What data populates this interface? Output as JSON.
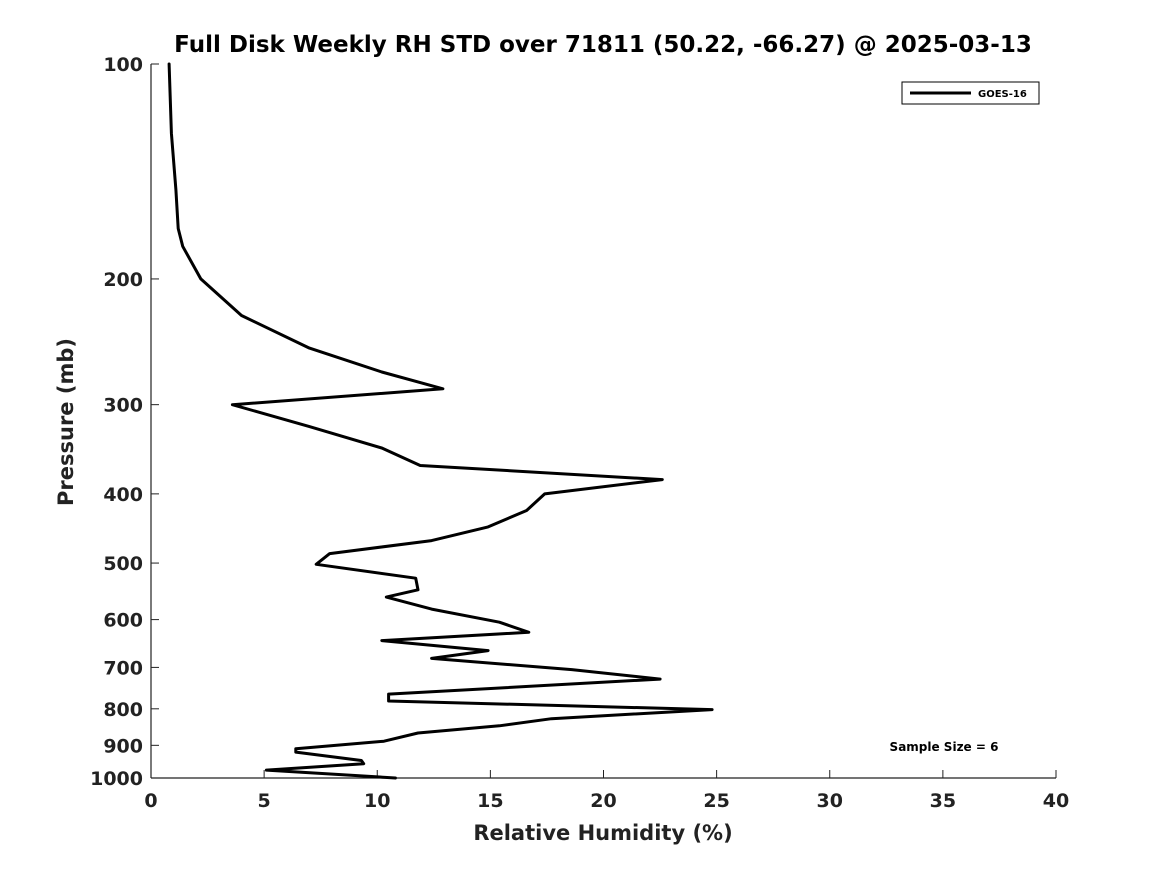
{
  "chart_data": {
    "type": "line",
    "title": "Full Disk Weekly RH STD over 71811 (50.22, -66.27) @ 2025-03-13",
    "xlabel": "Relative Humidity (%)",
    "ylabel": "Pressure (mb)",
    "xlim": [
      0,
      40
    ],
    "ylim": [
      100,
      1000
    ],
    "yscale": "log",
    "y_reversed": true,
    "x_ticks": [
      0,
      5,
      10,
      15,
      20,
      25,
      30,
      35,
      40
    ],
    "x_tick_labels": [
      "0",
      "5",
      "10",
      "15",
      "20",
      "25",
      "30",
      "35",
      "40"
    ],
    "y_ticks": [
      100,
      200,
      300,
      400,
      500,
      600,
      700,
      800,
      900,
      1000
    ],
    "y_tick_labels": [
      "100",
      "200",
      "300",
      "400",
      "500",
      "600",
      "700",
      "800",
      "900",
      "1000"
    ],
    "grid": false,
    "legend": {
      "position": "top-right",
      "entries": [
        "GOES-16"
      ]
    },
    "annotation": "Sample Size = 6",
    "series": [
      {
        "name": "GOES-16",
        "color": "#000000",
        "points": [
          [
            0.8,
            100
          ],
          [
            0.9,
            125
          ],
          [
            1.1,
            150
          ],
          [
            1.2,
            170
          ],
          [
            1.4,
            180
          ],
          [
            2.2,
            200
          ],
          [
            4.0,
            225
          ],
          [
            7.0,
            250
          ],
          [
            10.2,
            270
          ],
          [
            12.9,
            285
          ],
          [
            3.6,
            300
          ],
          [
            7.0,
            322
          ],
          [
            10.2,
            345
          ],
          [
            11.9,
            365
          ],
          [
            22.6,
            382
          ],
          [
            17.4,
            400
          ],
          [
            16.6,
            422
          ],
          [
            14.9,
            445
          ],
          [
            12.4,
            465
          ],
          [
            7.9,
            485
          ],
          [
            7.3,
            502
          ],
          [
            11.7,
            525
          ],
          [
            11.8,
            545
          ],
          [
            10.4,
            558
          ],
          [
            12.4,
            580
          ],
          [
            15.4,
            605
          ],
          [
            16.7,
            625
          ],
          [
            10.2,
            642
          ],
          [
            14.9,
            663
          ],
          [
            12.4,
            680
          ],
          [
            18.6,
            705
          ],
          [
            22.5,
            727
          ],
          [
            10.5,
            763
          ],
          [
            10.5,
            780
          ],
          [
            24.8,
            802
          ],
          [
            17.7,
            826
          ],
          [
            15.4,
            845
          ],
          [
            11.8,
            865
          ],
          [
            10.3,
            888
          ],
          [
            6.4,
            910
          ],
          [
            6.4,
            920
          ],
          [
            9.3,
            945
          ],
          [
            9.4,
            955
          ],
          [
            5.1,
            975
          ],
          [
            10.8,
            1000
          ]
        ]
      }
    ]
  }
}
